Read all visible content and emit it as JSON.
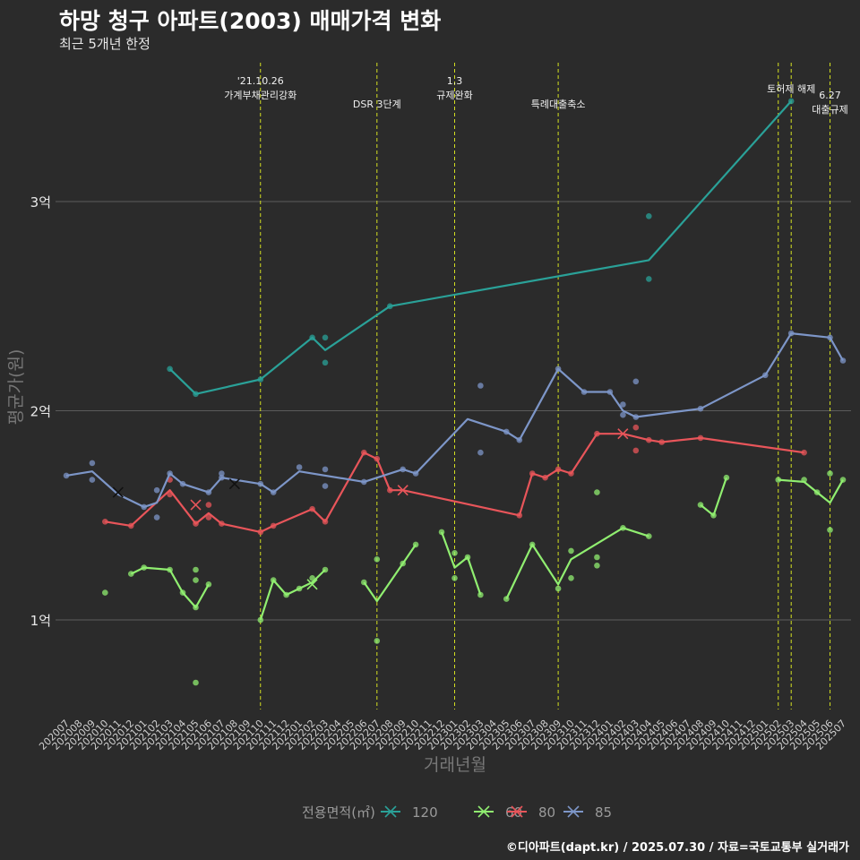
{
  "header": {
    "title": "하망 청구 아파트(2003) 매매가격 변화",
    "subtitle": "최근 5개년 한정",
    "caption": "©디아파트(dapt.kr) / 2025.07.30 / 자료=국토교통부 실거래가"
  },
  "chart_data": {
    "type": "line",
    "xlabel": "거래년월",
    "ylabel": "평균가(원)",
    "ylim": [
      0.6,
      3.45
    ],
    "y_ticks": [
      {
        "value": 1,
        "label": "1억"
      },
      {
        "value": 2,
        "label": "2억"
      },
      {
        "value": 3,
        "label": "3억"
      }
    ],
    "x_categories": [
      "202007",
      "202008",
      "202009",
      "202010",
      "202011",
      "202012",
      "202101",
      "202102",
      "202103",
      "202104",
      "202105",
      "202106",
      "202107",
      "202108",
      "202109",
      "202110",
      "202111",
      "202112",
      "202201",
      "202202",
      "202203",
      "202204",
      "202205",
      "202206",
      "202207",
      "202208",
      "202209",
      "202210",
      "202211",
      "202212",
      "202301",
      "202302",
      "202303",
      "202304",
      "202305",
      "202306",
      "202307",
      "202308",
      "202309",
      "202310",
      "202311",
      "202312",
      "202401",
      "202402",
      "202403",
      "202404",
      "202405",
      "202406",
      "202407",
      "202408",
      "202409",
      "202410",
      "202411",
      "202412",
      "202501",
      "202502",
      "202503",
      "202504",
      "202505",
      "202506",
      "202507"
    ],
    "grid": true,
    "legend": {
      "title": "전용면적(㎡)",
      "position": "bottom",
      "items": [
        {
          "name": "120",
          "color": "#2aa198"
        },
        {
          "name": "60",
          "color": "#90ee70"
        },
        {
          "name": "80",
          "color": "#e8555a"
        },
        {
          "name": "85",
          "color": "#7d96c8"
        }
      ]
    },
    "events": [
      {
        "month": "202110",
        "label": "'21.10.26\n가계부채관리강화"
      },
      {
        "month": "202207",
        "label": "DSR 3단계"
      },
      {
        "month": "202301",
        "label": "1.3\n규제완화"
      },
      {
        "month": "202309",
        "label": "특례대출축소"
      },
      {
        "month": "202502",
        "label": ""
      },
      {
        "month": "202503",
        "label": "토허제 해제"
      },
      {
        "month": "202506",
        "label": "6.27\n대출규제"
      }
    ],
    "series": [
      {
        "name": "120",
        "color": "#2aa198",
        "line": [
          [
            "202103",
            2.2
          ],
          [
            "202105",
            2.08
          ],
          [
            "202110",
            2.15
          ],
          [
            "202202",
            2.35
          ],
          [
            "202203",
            2.29
          ],
          [
            "202208",
            2.5
          ],
          [
            "202404",
            2.72
          ],
          [
            "202503",
            3.48
          ]
        ],
        "points": [
          [
            "202103",
            2.2
          ],
          [
            "202105",
            2.08
          ],
          [
            "202110",
            2.15
          ],
          [
            "202202",
            2.35
          ],
          [
            "202203",
            2.35
          ],
          [
            "202203",
            2.23
          ],
          [
            "202208",
            2.5
          ],
          [
            "202404",
            2.93
          ],
          [
            "202404",
            2.63
          ],
          [
            "202503",
            3.48
          ]
        ],
        "crosses": []
      },
      {
        "name": "60",
        "color": "#90ee70",
        "line": [
          [
            "202012",
            1.22
          ],
          [
            "202101",
            1.25
          ],
          [
            "202103",
            1.24
          ],
          [
            "202104",
            1.13
          ],
          [
            "202105",
            1.06
          ],
          [
            "202106",
            1.17
          ],
          null,
          [
            "202110",
            1.0
          ],
          [
            "202111",
            1.19
          ],
          [
            "202112",
            1.12
          ],
          [
            "202201",
            1.15
          ],
          [
            "202202",
            1.18
          ],
          [
            "202203",
            1.24
          ],
          null,
          [
            "202206",
            1.18
          ],
          [
            "202207",
            1.09
          ],
          [
            "202209",
            1.27
          ],
          [
            "202210",
            1.36
          ],
          null,
          [
            "202212",
            1.42
          ],
          [
            "202301",
            1.25
          ],
          [
            "202302",
            1.3
          ],
          [
            "202303",
            1.12
          ],
          null,
          [
            "202305",
            1.1
          ],
          [
            "202307",
            1.36
          ],
          [
            "202309",
            1.17
          ],
          [
            "202310",
            1.29
          ],
          [
            "202402",
            1.44
          ],
          [
            "202404",
            1.4
          ],
          null,
          [
            "202408",
            1.55
          ],
          [
            "202409",
            1.5
          ],
          [
            "202410",
            1.68
          ],
          null,
          [
            "202502",
            1.67
          ],
          [
            "202504",
            1.66
          ],
          [
            "202505",
            1.61
          ],
          [
            "202506",
            1.56
          ],
          [
            "202507",
            1.67
          ]
        ],
        "points": [
          [
            "202010",
            1.13
          ],
          [
            "202012",
            1.22
          ],
          [
            "202101",
            1.25
          ],
          [
            "202103",
            1.24
          ],
          [
            "202104",
            1.13
          ],
          [
            "202105",
            1.24
          ],
          [
            "202105",
            1.19
          ],
          [
            "202105",
            1.06
          ],
          [
            "202105",
            0.7
          ],
          [
            "202106",
            1.17
          ],
          [
            "202110",
            1.0
          ],
          [
            "202111",
            1.19
          ],
          [
            "202112",
            1.12
          ],
          [
            "202201",
            1.15
          ],
          [
            "202202",
            1.2
          ],
          [
            "202203",
            1.24
          ],
          [
            "202206",
            1.18
          ],
          [
            "202207",
            1.29
          ],
          [
            "202207",
            0.9
          ],
          [
            "202209",
            1.27
          ],
          [
            "202210",
            1.36
          ],
          [
            "202212",
            1.42
          ],
          [
            "202301",
            1.32
          ],
          [
            "202301",
            1.2
          ],
          [
            "202302",
            1.3
          ],
          [
            "202303",
            1.12
          ],
          [
            "202305",
            1.1
          ],
          [
            "202307",
            1.36
          ],
          [
            "202309",
            1.15
          ],
          [
            "202310",
            1.33
          ],
          [
            "202310",
            1.2
          ],
          [
            "202312",
            1.61
          ],
          [
            "202312",
            1.3
          ],
          [
            "202312",
            1.26
          ],
          [
            "202402",
            1.44
          ],
          [
            "202404",
            1.4
          ],
          [
            "202408",
            1.55
          ],
          [
            "202409",
            1.5
          ],
          [
            "202410",
            1.68
          ],
          [
            "202502",
            1.67
          ],
          [
            "202504",
            1.67
          ],
          [
            "202505",
            1.61
          ],
          [
            "202506",
            1.7
          ],
          [
            "202506",
            1.43
          ],
          [
            "202507",
            1.67
          ]
        ],
        "crosses": [
          [
            "202202",
            1.17
          ]
        ]
      },
      {
        "name": "80",
        "color": "#e8555a",
        "line": [
          [
            "202010",
            1.47
          ],
          [
            "202012",
            1.45
          ],
          [
            "202103",
            1.62
          ],
          [
            "202105",
            1.46
          ],
          [
            "202106",
            1.51
          ],
          [
            "202107",
            1.46
          ],
          [
            "202110",
            1.42
          ],
          [
            "202111",
            1.45
          ],
          [
            "202202",
            1.53
          ],
          [
            "202203",
            1.47
          ],
          [
            "202206",
            1.8
          ],
          [
            "202207",
            1.77
          ],
          [
            "202208",
            1.62
          ],
          [
            "202209",
            1.62
          ],
          [
            "202306",
            1.5
          ],
          [
            "202307",
            1.7
          ],
          [
            "202308",
            1.68
          ],
          [
            "202309",
            1.72
          ],
          [
            "202310",
            1.7
          ],
          [
            "202312",
            1.89
          ],
          [
            "202402",
            1.89
          ],
          [
            "202404",
            1.86
          ],
          [
            "202405",
            1.85
          ],
          [
            "202408",
            1.87
          ],
          [
            "202504",
            1.8
          ]
        ],
        "points": [
          [
            "202010",
            1.47
          ],
          [
            "202012",
            1.45
          ],
          [
            "202103",
            1.67
          ],
          [
            "202103",
            1.6
          ],
          [
            "202105",
            1.46
          ],
          [
            "202106",
            1.55
          ],
          [
            "202106",
            1.49
          ],
          [
            "202107",
            1.46
          ],
          [
            "202110",
            1.42
          ],
          [
            "202111",
            1.45
          ],
          [
            "202202",
            1.53
          ],
          [
            "202203",
            1.47
          ],
          [
            "202206",
            1.8
          ],
          [
            "202207",
            1.77
          ],
          [
            "202208",
            1.62
          ],
          [
            "202306",
            1.5
          ],
          [
            "202307",
            1.7
          ],
          [
            "202308",
            1.68
          ],
          [
            "202309",
            1.72
          ],
          [
            "202310",
            1.7
          ],
          [
            "202312",
            1.89
          ],
          [
            "202403",
            1.92
          ],
          [
            "202403",
            1.81
          ],
          [
            "202404",
            1.86
          ],
          [
            "202405",
            1.85
          ],
          [
            "202408",
            1.87
          ],
          [
            "202504",
            1.8
          ]
        ],
        "crosses": [
          [
            "202105",
            1.55
          ],
          [
            "202209",
            1.62
          ],
          [
            "202402",
            1.89
          ]
        ]
      },
      {
        "name": "85",
        "color": "#7d96c8",
        "line": [
          [
            "202007",
            1.69
          ],
          [
            "202009",
            1.71
          ],
          [
            "202011",
            1.6
          ],
          [
            "202101",
            1.54
          ],
          [
            "202102",
            1.56
          ],
          [
            "202103",
            1.7
          ],
          [
            "202104",
            1.65
          ],
          [
            "202106",
            1.61
          ],
          [
            "202107",
            1.68
          ],
          [
            "202110",
            1.65
          ],
          [
            "202111",
            1.61
          ],
          [
            "202201",
            1.71
          ],
          [
            "202206",
            1.66
          ],
          [
            "202209",
            1.72
          ],
          [
            "202210",
            1.7
          ],
          [
            "202302",
            1.96
          ],
          [
            "202305",
            1.9
          ],
          [
            "202306",
            1.86
          ],
          [
            "202309",
            2.2
          ],
          [
            "202311",
            2.09
          ],
          [
            "202401",
            2.09
          ],
          [
            "202402",
            2.0
          ],
          [
            "202403",
            1.97
          ],
          [
            "202408",
            2.01
          ],
          [
            "202501",
            2.17
          ],
          [
            "202503",
            2.37
          ],
          [
            "202506",
            2.35
          ],
          [
            "202507",
            2.24
          ]
        ],
        "points": [
          [
            "202007",
            1.69
          ],
          [
            "202009",
            1.75
          ],
          [
            "202009",
            1.67
          ],
          [
            "202101",
            1.54
          ],
          [
            "202102",
            1.62
          ],
          [
            "202102",
            1.49
          ],
          [
            "202103",
            1.7
          ],
          [
            "202104",
            1.65
          ],
          [
            "202106",
            1.61
          ],
          [
            "202107",
            1.7
          ],
          [
            "202107",
            1.68
          ],
          [
            "202110",
            1.65
          ],
          [
            "202111",
            1.61
          ],
          [
            "202201",
            1.73
          ],
          [
            "202203",
            1.72
          ],
          [
            "202203",
            1.64
          ],
          [
            "202206",
            1.66
          ],
          [
            "202209",
            1.72
          ],
          [
            "202210",
            1.7
          ],
          [
            "202303",
            2.12
          ],
          [
            "202303",
            1.8
          ],
          [
            "202305",
            1.9
          ],
          [
            "202306",
            1.86
          ],
          [
            "202309",
            2.2
          ],
          [
            "202311",
            2.09
          ],
          [
            "202401",
            2.09
          ],
          [
            "202402",
            2.03
          ],
          [
            "202402",
            1.98
          ],
          [
            "202403",
            2.14
          ],
          [
            "202403",
            1.97
          ],
          [
            "202408",
            2.01
          ],
          [
            "202501",
            2.17
          ],
          [
            "202503",
            2.37
          ],
          [
            "202506",
            2.35
          ],
          [
            "202507",
            2.24
          ]
        ],
        "crosses": [
          [
            "202011",
            1.61
          ],
          [
            "202108",
            1.65
          ]
        ]
      }
    ]
  }
}
